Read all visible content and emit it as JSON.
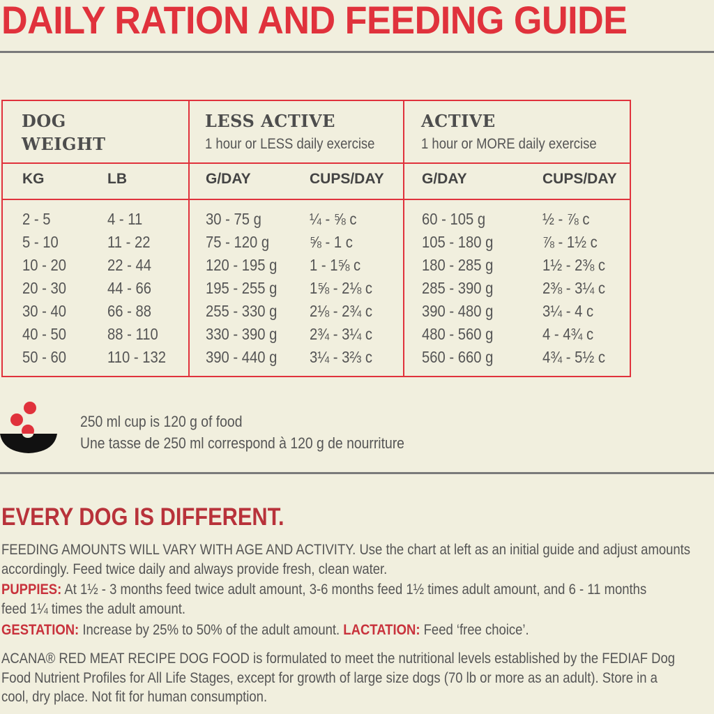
{
  "title": "DAILY RATION AND FEEDING GUIDE",
  "table": {
    "groups": [
      {
        "title_line1": "DOG",
        "title_line2": "WEIGHT"
      },
      {
        "title": "LESS ACTIVE",
        "subtitle": "1 hour or LESS daily exercise"
      },
      {
        "title": "ACTIVE",
        "subtitle": "1 hour or MORE daily exercise"
      }
    ],
    "columns": [
      "KG",
      "LB",
      "G/DAY",
      "CUPS/DAY",
      "G/DAY",
      "CUPS/DAY"
    ],
    "rows": [
      [
        "2 - 5",
        "4 - 11",
        "30 - 75 g",
        "¼ - ⅝ c",
        "60 - 105 g",
        "½ - ⅞ c"
      ],
      [
        "5 - 10",
        "11 - 22",
        "75 - 120 g",
        "⅝ - 1 c",
        "105 - 180 g",
        "⅞ - 1½ c"
      ],
      [
        "10 - 20",
        "22 - 44",
        "120 - 195 g",
        "1 - 1⅝ c",
        "180 - 285 g",
        "1½ - 2⅜ c"
      ],
      [
        "20 - 30",
        "44 - 66",
        "195 - 255 g",
        "1⅝ - 2⅛ c",
        "285 - 390 g",
        "2⅜ - 3¼ c"
      ],
      [
        "30 - 40",
        "66 - 88",
        "255 - 330 g",
        "2⅛ - 2¾ c",
        "390 - 480 g",
        "3¼ - 4  c"
      ],
      [
        "40 - 50",
        "88 - 110",
        "330 - 390 g",
        "2¾ - 3¼ c",
        "480 - 560 g",
        "4 - 4¾ c"
      ],
      [
        "50 - 60",
        "110 - 132",
        "390 - 440 g",
        "3¼ - 3⅔ c",
        "560 - 660 g",
        "4¾ - 5½ c"
      ]
    ]
  },
  "cup_note": {
    "icon": "bowl-icon",
    "line1": "250 ml cup is 120 g of food",
    "line2": "Une tasse de 250 ml correspond à 120 g de nourriture"
  },
  "heading": "EVERY DOG IS DIFFERENT.",
  "lines": [
    {
      "label": "",
      "text": "FEEDING AMOUNTS WILL VARY WITH AGE AND ACTIVITY.  Use the chart at left as an initial guide and adjust amounts"
    },
    {
      "label": "",
      "text": "accordingly. Feed twice daily and always provide fresh, clean water."
    },
    {
      "label": "PUPPIES:",
      "text": " At 1½ - 3 months feed twice adult amount, 3-6 months feed 1½ times adult amount, and 6 - 11 months"
    },
    {
      "label": "",
      "text": "feed 1¼ times the adult amount."
    },
    {
      "label": "GESTATION:",
      "text": " Increase by 25% to 50% of the adult amount. ",
      "label2": "LACTATION:",
      "text2": " Feed ‘free choice’."
    },
    {
      "label": "",
      "text": "ACANA® RED MEAT RECIPE DOG FOOD is formulated to meet the nutritional levels established by the FEDIAF Dog"
    },
    {
      "label": "",
      "text": "Food Nutrient Profiles for All Life Stages, except for growth of large size dogs (70 lb or more as an adult).  Store in a"
    },
    {
      "label": "",
      "text": "cool, dry place. Not fit for human consumption."
    }
  ]
}
